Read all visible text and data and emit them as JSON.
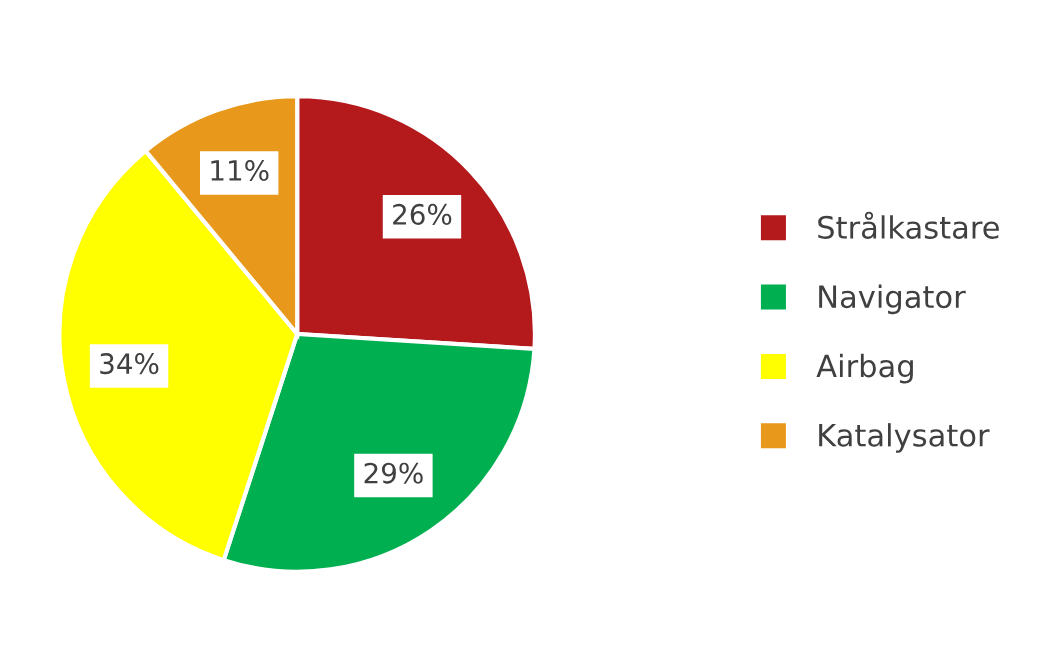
{
  "chart_data": {
    "type": "pie",
    "categories": [
      "Strålkastare",
      "Navigator",
      "Airbag",
      "Katalysator"
    ],
    "values": [
      26,
      29,
      34,
      11
    ],
    "colors": [
      "#b4191c",
      "#00b050",
      "#ffff00",
      "#e8981a"
    ],
    "value_labels": [
      "26%",
      "29%",
      "34%",
      "11%"
    ],
    "legend": "right"
  }
}
